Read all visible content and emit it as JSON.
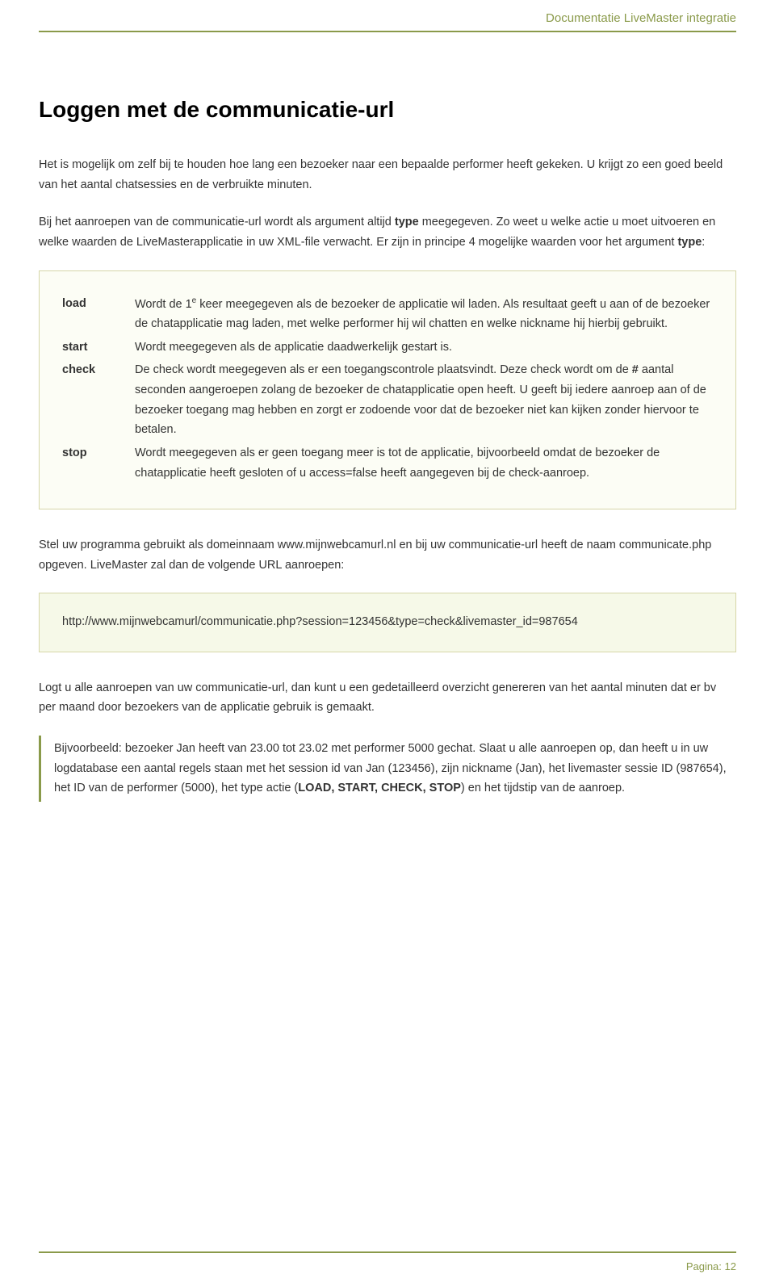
{
  "header": {
    "text": "Documentatie LiveMaster integratie"
  },
  "title": "Loggen met de communicatie-url",
  "para1_a": "Het is mogelijk om zelf bij te houden hoe lang een bezoeker naar een bepaalde performer heeft gekeken. U krijgt zo  een goed beeld van het aantal chatsessies en de verbruikte minuten.",
  "para2_a": "Bij het aanroepen van de communicatie-url wordt als argument altijd ",
  "para2_b": "type",
  "para2_c": " meegegeven. Zo weet u welke actie u moet uitvoeren en welke waarden de LiveMasterapplicatie in uw XML-file verwacht. Er zijn in principe 4 mogelijke waarden voor het argument ",
  "para2_d": "type",
  "para2_e": ":",
  "defs": {
    "load": {
      "term": "load",
      "a": "Wordt de 1",
      "sup": "e",
      "b": " keer meegegeven als de bezoeker de applicatie wil laden. Als resultaat geeft u aan of de bezoeker de chatapplicatie mag laden, met welke performer hij wil chatten en welke nickname hij hierbij gebruikt."
    },
    "start": {
      "term": "start",
      "a": "Wordt meegegeven als de applicatie daadwerkelijk gestart is."
    },
    "check": {
      "term": "check",
      "a": "De check wordt meegegeven als er een toegangscontrole plaatsvindt. Deze check wordt om de ",
      "hash": "#",
      "b": " aantal seconden aangeroepen zolang de bezoeker de chatapplicatie open heeft. U geeft bij iedere aanroep aan of de bezoeker toegang mag hebben en zorgt er zodoende voor dat de bezoeker niet kan kijken zonder hiervoor te betalen."
    },
    "stop": {
      "term": "stop",
      "a": "Wordt meegegeven als er geen toegang meer is tot de applicatie, bijvoorbeeld omdat de bezoeker de chatapplicatie heeft gesloten of u access=false heeft aangegeven bij de check-aanroep."
    }
  },
  "para3": "Stel uw programma gebruikt als domeinnaam www.mijnwebcamurl.nl en bij uw communicatie-url heeft de naam communicate.php opgeven. LiveMaster zal dan de volgende URL aanroepen:",
  "codebox": "http://www.mijnwebcamurl/communicatie.php?session=123456&type=check&livemaster_id=987654",
  "para4": "Logt u alle aanroepen van uw communicatie-url, dan kunt u een gedetailleerd overzicht genereren van het aantal minuten dat er bv per maand door bezoekers van de applicatie gebruik is gemaakt.",
  "quote_a": "Bijvoorbeeld: bezoeker Jan heeft van 23.00 tot 23.02 met performer 5000 gechat. Slaat u alle aanroepen op, dan heeft u in uw logdatabase een aantal regels staan met het session id van Jan (123456), zijn nickname (Jan), het livemaster sessie ID (987654), het ID van de performer (5000), het type actie (",
  "quote_b": "LOAD, START, CHECK, STOP",
  "quote_c": ") en het tijdstip van de aanroep.",
  "footer": {
    "label": "Pagina:",
    "num": "12"
  }
}
